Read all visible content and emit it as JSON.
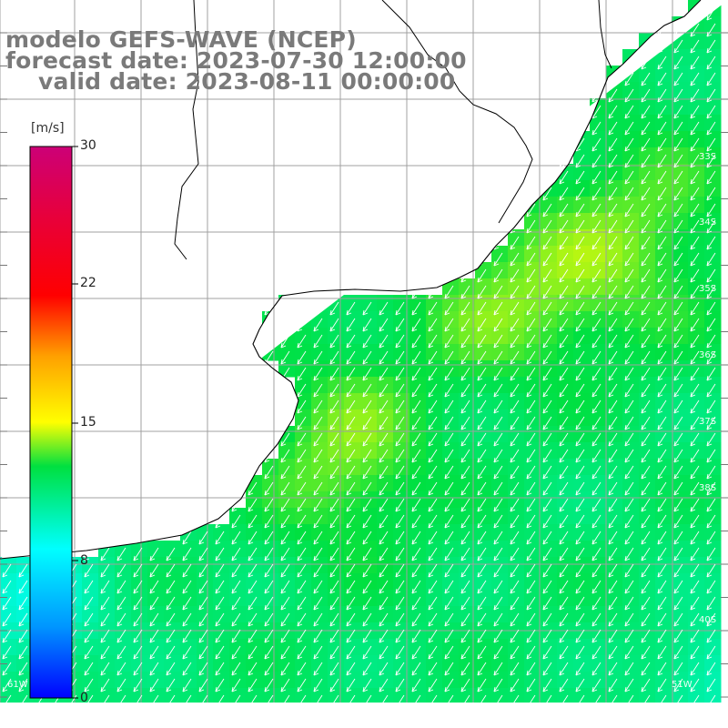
{
  "header": {
    "title_line_1": "modelo GEFS-WAVE (NCEP)",
    "title_line_2": "forecast date: 2023-07-30 12:00:00",
    "title_line_3": "valid date: 2023-08-11 00:00:00"
  },
  "colorbar": {
    "unit": "[m/s]",
    "ticks": [
      "30",
      "22",
      "15",
      "8",
      "0"
    ],
    "range": [
      0,
      30
    ],
    "colors": [
      "#0000ff",
      "#00c8ff",
      "#00ffff",
      "#00ff00",
      "#ffff00",
      "#ff8000",
      "#ff0000",
      "#cc0077"
    ]
  },
  "map": {
    "latitude_labels": [
      "33S",
      "34S",
      "35S",
      "36S",
      "37S",
      "38S",
      "40S"
    ],
    "longitude_labels": [
      "61W",
      "51W"
    ],
    "wind_direction": "from northeast",
    "land_color": "#ffffff",
    "grid_color": "#a0a0a0",
    "coast_color": "#000000"
  }
}
